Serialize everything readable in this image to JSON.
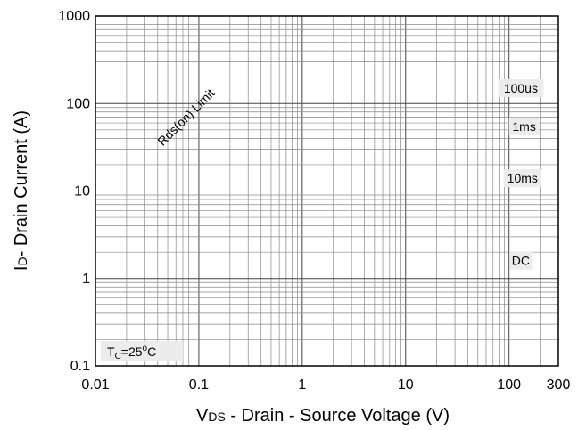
{
  "chart_data": {
    "type": "line",
    "title": "",
    "x_scale": "log",
    "y_scale": "log",
    "xlim": [
      0.01,
      300
    ],
    "ylim": [
      0.1,
      1000
    ],
    "grid": true,
    "x_ticks": [
      {
        "value": 0.01,
        "label": "0.01"
      },
      {
        "value": 0.1,
        "label": "0.1"
      },
      {
        "value": 1,
        "label": "1"
      },
      {
        "value": 10,
        "label": "10"
      },
      {
        "value": 100,
        "label": "100"
      },
      {
        "value": 300,
        "label": "300"
      }
    ],
    "y_ticks": [
      {
        "value": 0.1,
        "label": "0.1"
      },
      {
        "value": 1,
        "label": "1"
      },
      {
        "value": 10,
        "label": "10"
      },
      {
        "value": 100,
        "label": "100"
      },
      {
        "value": 1000,
        "label": "1000"
      }
    ],
    "xlabel": {
      "main": "V",
      "sub": "DS",
      "rest": " - Drain - Source Voltage (V)"
    },
    "ylabel": {
      "main": "I",
      "sub": "D",
      "rest": "- Drain Current (A)"
    },
    "annotations": [
      {
        "id": "rds",
        "text": "Rds(on) Limit",
        "x": 0.075,
        "y": 70
      },
      {
        "id": "100us",
        "text": "100us",
        "x": 130,
        "y": 150
      },
      {
        "id": "1ms",
        "text": "1ms",
        "x": 140,
        "y": 55
      },
      {
        "id": "10ms",
        "text": "10ms",
        "x": 135,
        "y": 14
      },
      {
        "id": "dc",
        "text": "DC",
        "x": 130,
        "y": 1.6
      }
    ],
    "temp_label": {
      "main": "T",
      "sub": "C",
      "mid": "=25",
      "sup": "o",
      "end": "C"
    }
  }
}
